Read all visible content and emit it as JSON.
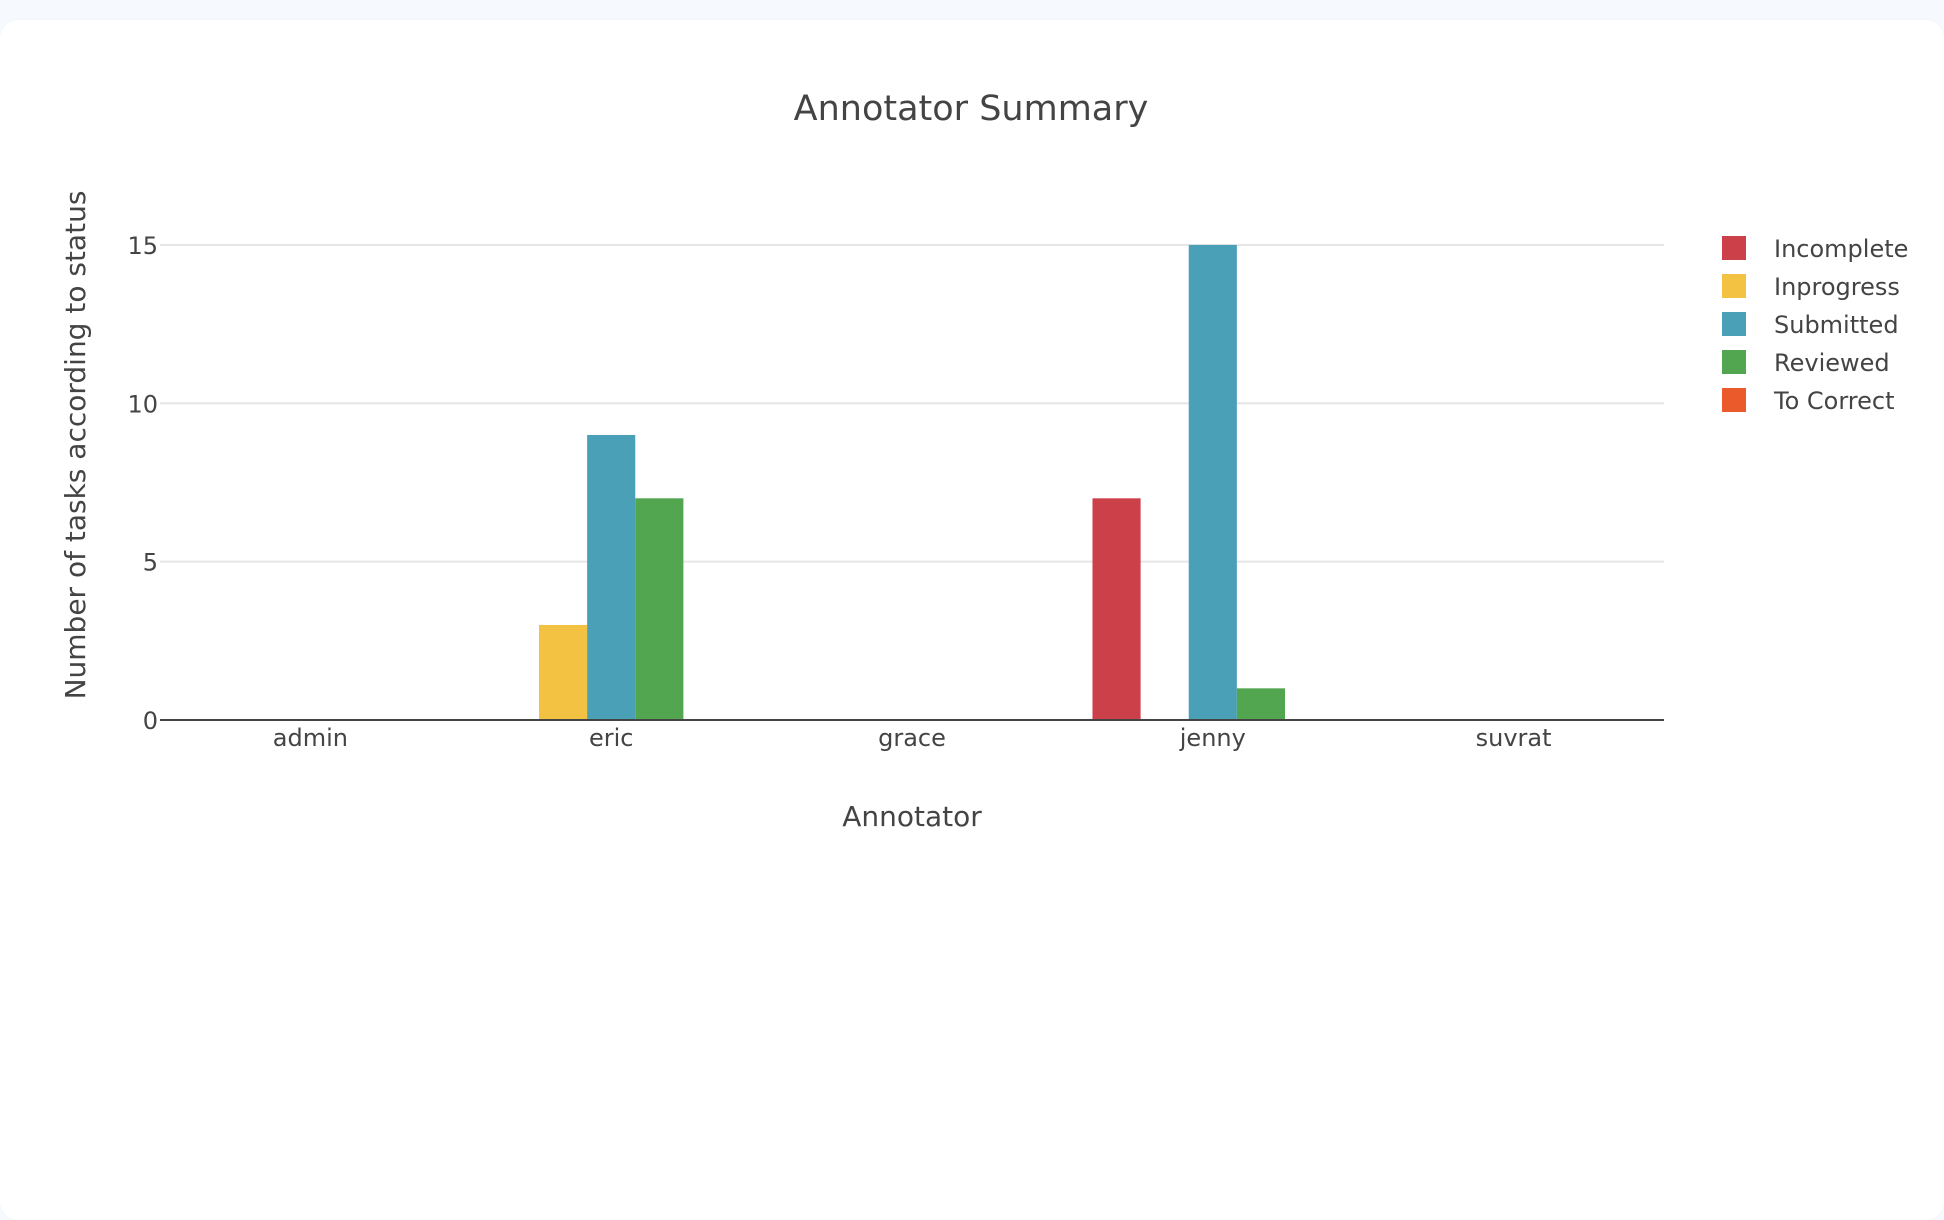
{
  "chart_data": {
    "type": "bar",
    "title": "Annotator Summary",
    "xlabel": "Annotator",
    "ylabel": "Number of tasks according to status",
    "categories": [
      "admin",
      "eric",
      "grace",
      "jenny",
      "suvrat"
    ],
    "ylim": [
      0,
      17
    ],
    "yticks": [
      0,
      5,
      10,
      15
    ],
    "grid": true,
    "legend_position": "top-right",
    "series": [
      {
        "name": "Incomplete",
        "color": "#cc4149",
        "values": [
          0,
          0,
          0,
          7,
          0
        ]
      },
      {
        "name": "Inprogress",
        "color": "#f4c242",
        "values": [
          0,
          3,
          0,
          0,
          0
        ]
      },
      {
        "name": "Submitted",
        "color": "#4aa0b7",
        "values": [
          0,
          9,
          0,
          15,
          0
        ]
      },
      {
        "name": "Reviewed",
        "color": "#52a64f",
        "values": [
          0,
          7,
          0,
          1,
          0
        ]
      },
      {
        "name": "To Correct",
        "color": "#ea5a2a",
        "values": [
          0,
          0,
          0,
          0,
          0
        ]
      }
    ]
  }
}
